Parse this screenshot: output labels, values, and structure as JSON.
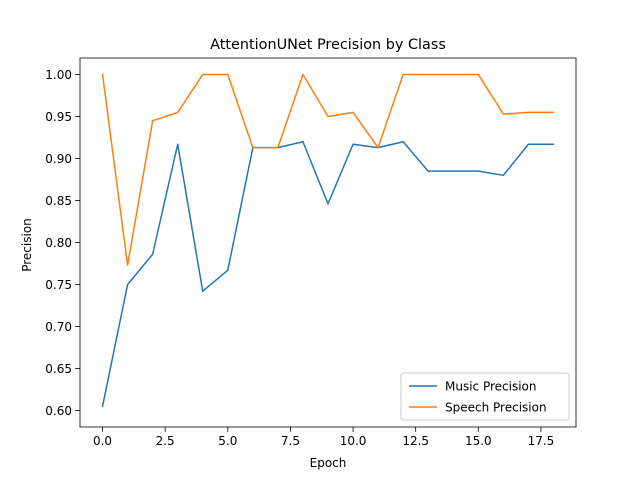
{
  "chart_data": {
    "type": "line",
    "title": "AttentionUNet Precision by Class",
    "xlabel": "Epoch",
    "ylabel": "Precision",
    "xlim": [
      -0.9,
      18.9
    ],
    "ylim": [
      0.5803,
      1.0197
    ],
    "x_ticks": [
      0.0,
      2.5,
      5.0,
      7.5,
      10.0,
      12.5,
      15.0,
      17.5
    ],
    "x_tick_labels": [
      "0.0",
      "2.5",
      "5.0",
      "7.5",
      "10.0",
      "12.5",
      "15.0",
      "17.5"
    ],
    "y_ticks": [
      0.6,
      0.65,
      0.7,
      0.75,
      0.8,
      0.85,
      0.9,
      0.95,
      1.0
    ],
    "y_tick_labels": [
      "0.60",
      "0.65",
      "0.70",
      "0.75",
      "0.80",
      "0.85",
      "0.90",
      "0.95",
      "1.00"
    ],
    "grid": false,
    "legend_position": "lower-right",
    "x": [
      0,
      1,
      2,
      3,
      4,
      5,
      6,
      7,
      8,
      9,
      10,
      11,
      12,
      13,
      14,
      15,
      16,
      17,
      18
    ],
    "series": [
      {
        "name": "Music Precision",
        "color": "#1f77b4",
        "values": [
          0.605,
          0.75,
          0.786,
          0.917,
          0.742,
          0.767,
          0.913,
          0.913,
          0.92,
          0.846,
          0.917,
          0.913,
          0.92,
          0.885,
          0.885,
          0.885,
          0.88,
          0.917,
          0.917
        ]
      },
      {
        "name": "Speech Precision",
        "color": "#ff7f0e",
        "values": [
          1.0,
          0.773,
          0.945,
          0.955,
          1.0,
          1.0,
          0.913,
          0.913,
          1.0,
          0.95,
          0.955,
          0.913,
          1.0,
          1.0,
          1.0,
          1.0,
          0.953,
          0.955,
          0.955
        ]
      }
    ]
  }
}
